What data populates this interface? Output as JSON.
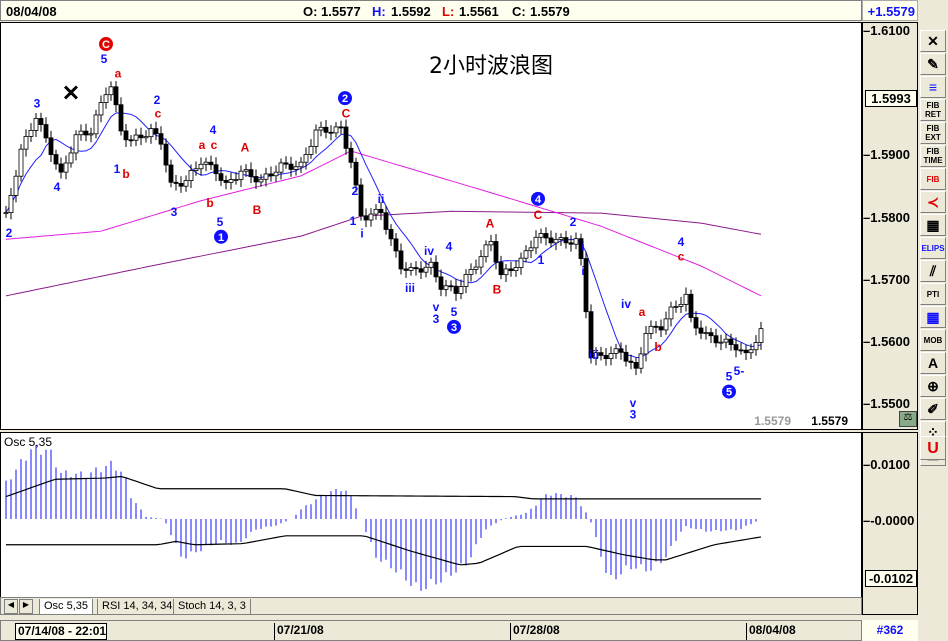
{
  "header": {
    "date": "08/04/08",
    "o_label": "O:",
    "o": "1.5577",
    "h_label": "H:",
    "h": "1.5592",
    "l_label": "L:",
    "l": "1.5561",
    "c_label": "C:",
    "c": "1.5579",
    "change": "+1.5579"
  },
  "colors": {
    "up_label": "#1010ff",
    "down_label": "#e00000",
    "ma_fast": "#2020ff",
    "ma_mid": "#e020e0",
    "ma_slow": "#8b1a8b",
    "histogram": "#1010ff"
  },
  "chart_data": [
    {
      "type": "candlestick",
      "title": "2小时波浪图",
      "ylim": [
        1.5425,
        1.614
      ],
      "y_ticks": [
        "1.6100",
        "1.5900",
        "1.5800",
        "1.5700",
        "1.5600",
        "1.5500"
      ],
      "highlight_price": "1.5993",
      "last_price_grey": "1.5579",
      "last_price": "1.5579",
      "close_keypoints": [
        [
          1,
          1.5802
        ],
        [
          4,
          1.5907
        ],
        [
          7,
          1.5963
        ],
        [
          10,
          1.5907
        ],
        [
          12,
          1.5867
        ],
        [
          15,
          1.5931
        ],
        [
          18,
          1.5939
        ],
        [
          21,
          1.6003
        ],
        [
          22,
          1.6012
        ],
        [
          24,
          1.5939
        ],
        [
          26,
          1.5923
        ],
        [
          30,
          1.5939
        ],
        [
          32,
          1.5923
        ],
        [
          34,
          1.5851
        ],
        [
          37,
          1.5859
        ],
        [
          40,
          1.5891
        ],
        [
          43,
          1.5875
        ],
        [
          45,
          1.5851
        ],
        [
          48,
          1.5875
        ],
        [
          52,
          1.5859
        ],
        [
          56,
          1.5883
        ],
        [
          60,
          1.5883
        ],
        [
          63,
          1.5939
        ],
        [
          68,
          1.5942
        ],
        [
          70,
          1.5891
        ],
        [
          72,
          1.5802
        ],
        [
          73,
          1.5802
        ],
        [
          76,
          1.581
        ],
        [
          78,
          1.5762
        ],
        [
          80,
          1.5722
        ],
        [
          82,
          1.5714
        ],
        [
          86,
          1.5722
        ],
        [
          88,
          1.569
        ],
        [
          91,
          1.5682
        ],
        [
          94,
          1.5714
        ],
        [
          98,
          1.5762
        ],
        [
          100,
          1.5706
        ],
        [
          104,
          1.573
        ],
        [
          107,
          1.577
        ],
        [
          112,
          1.5762
        ],
        [
          115,
          1.5762
        ],
        [
          116,
          1.573
        ],
        [
          118,
          1.5577
        ],
        [
          120,
          1.5577
        ],
        [
          124,
          1.5585
        ],
        [
          127,
          1.5553
        ],
        [
          129,
          1.5617
        ],
        [
          132,
          1.5625
        ],
        [
          134,
          1.565
        ],
        [
          137,
          1.5674
        ],
        [
          138,
          1.5634
        ],
        [
          141,
          1.561
        ],
        [
          144,
          1.5601
        ],
        [
          147,
          1.5593
        ],
        [
          149,
          1.5577
        ],
        [
          152,
          1.5617
        ]
      ],
      "ma_mid": [
        [
          1,
          1.5765
        ],
        [
          20,
          1.5778
        ],
        [
          40,
          1.5827
        ],
        [
          60,
          1.5867
        ],
        [
          70,
          1.5907
        ],
        [
          80,
          1.5883
        ],
        [
          100,
          1.5835
        ],
        [
          120,
          1.5786
        ],
        [
          140,
          1.5722
        ],
        [
          152,
          1.5674
        ]
      ],
      "ma_slow": [
        [
          1,
          1.5674
        ],
        [
          30,
          1.5722
        ],
        [
          60,
          1.577
        ],
        [
          72,
          1.5802
        ],
        [
          90,
          1.581
        ],
        [
          120,
          1.5807
        ],
        [
          140,
          1.5791
        ],
        [
          152,
          1.5773
        ]
      ],
      "annotations": [
        {
          "bar": 21,
          "price": 1.6079,
          "text": "C",
          "color": "red",
          "circle": true
        },
        {
          "bar": 20.6,
          "price": 1.6055,
          "text": "5",
          "color": "blue"
        },
        {
          "bar": 23.4,
          "price": 1.6032,
          "text": "a",
          "color": "red"
        },
        {
          "bar": 7.2,
          "price": 1.5983,
          "text": "3",
          "color": "blue"
        },
        {
          "bar": 11.2,
          "price": 1.5849,
          "text": "4",
          "color": "blue"
        },
        {
          "bar": 1.6,
          "price": 1.5775,
          "text": "2",
          "color": "blue"
        },
        {
          "bar": 14,
          "price": 1.5995,
          "text": "✕",
          "color": "black"
        },
        {
          "bar": 31.2,
          "price": 1.5989,
          "text": "2",
          "color": "blue"
        },
        {
          "bar": 31.4,
          "price": 1.5967,
          "text": "c",
          "color": "red"
        },
        {
          "bar": 23.2,
          "price": 1.5878,
          "text": "1",
          "color": "blue"
        },
        {
          "bar": 25,
          "price": 1.587,
          "text": "b",
          "color": "red"
        },
        {
          "bar": 42.4,
          "price": 1.5941,
          "text": "4",
          "color": "blue"
        },
        {
          "bar": 40.2,
          "price": 1.5917,
          "text": "a",
          "color": "red"
        },
        {
          "bar": 42.6,
          "price": 1.5917,
          "text": "c",
          "color": "red"
        },
        {
          "bar": 34.6,
          "price": 1.5809,
          "text": "3",
          "color": "blue"
        },
        {
          "bar": 41.8,
          "price": 1.5823,
          "text": "b",
          "color": "red"
        },
        {
          "bar": 43.8,
          "price": 1.5793,
          "text": "5",
          "color": "blue"
        },
        {
          "bar": 44,
          "price": 1.5769,
          "text": "1",
          "color": "blue",
          "circle": true
        },
        {
          "bar": 48.8,
          "price": 1.5913,
          "text": "A",
          "color": "red"
        },
        {
          "bar": 51.2,
          "price": 1.5812,
          "text": "B",
          "color": "red"
        },
        {
          "bar": 68.8,
          "price": 1.5992,
          "text": "2",
          "color": "blue",
          "circle": true
        },
        {
          "bar": 69,
          "price": 1.5967,
          "text": "C",
          "color": "red"
        },
        {
          "bar": 70.8,
          "price": 1.5843,
          "text": "2",
          "color": "blue"
        },
        {
          "bar": 70.4,
          "price": 1.5794,
          "text": "1",
          "color": "blue"
        },
        {
          "bar": 72.2,
          "price": 1.5774,
          "text": "i",
          "color": "blue"
        },
        {
          "bar": 76,
          "price": 1.583,
          "text": "ii",
          "color": "blue"
        },
        {
          "bar": 85.6,
          "price": 1.5746,
          "text": "iv",
          "color": "blue"
        },
        {
          "bar": 89.6,
          "price": 1.5753,
          "text": "4",
          "color": "blue"
        },
        {
          "bar": 81.8,
          "price": 1.5687,
          "text": "iii",
          "color": "blue"
        },
        {
          "bar": 87,
          "price": 1.5656,
          "text": "v",
          "color": "blue"
        },
        {
          "bar": 87,
          "price": 1.5637,
          "text": "3",
          "color": "blue"
        },
        {
          "bar": 90.6,
          "price": 1.5648,
          "text": "5",
          "color": "blue"
        },
        {
          "bar": 90.6,
          "price": 1.5624,
          "text": "3",
          "color": "blue",
          "circle": true
        },
        {
          "bar": 97.8,
          "price": 1.579,
          "text": "A",
          "color": "red"
        },
        {
          "bar": 99.2,
          "price": 1.5684,
          "text": "B",
          "color": "red"
        },
        {
          "bar": 107.4,
          "price": 1.583,
          "text": "4",
          "color": "blue",
          "circle": true
        },
        {
          "bar": 107.4,
          "price": 1.5804,
          "text": "C",
          "color": "red"
        },
        {
          "bar": 114.4,
          "price": 1.5793,
          "text": "2",
          "color": "blue"
        },
        {
          "bar": 108,
          "price": 1.5732,
          "text": "1",
          "color": "blue"
        },
        {
          "bar": 116.4,
          "price": 1.5753,
          "text": "i",
          "color": "blue"
        },
        {
          "bar": 116.4,
          "price": 1.5714,
          "text": "i",
          "color": "blue"
        },
        {
          "bar": 118.6,
          "price": 1.5579,
          "text": "iii",
          "color": "blue"
        },
        {
          "bar": 125,
          "price": 1.5661,
          "text": "iv",
          "color": "blue"
        },
        {
          "bar": 128.2,
          "price": 1.5648,
          "text": "a",
          "color": "red"
        },
        {
          "bar": 131.4,
          "price": 1.5592,
          "text": "b",
          "color": "red"
        },
        {
          "bar": 126.4,
          "price": 1.5502,
          "text": "v",
          "color": "blue"
        },
        {
          "bar": 126.4,
          "price": 1.5483,
          "text": "3",
          "color": "blue"
        },
        {
          "bar": 136,
          "price": 1.5761,
          "text": "4",
          "color": "blue"
        },
        {
          "bar": 136,
          "price": 1.5737,
          "text": "c",
          "color": "red"
        },
        {
          "bar": 145.6,
          "price": 1.5544,
          "text": "5",
          "color": "blue"
        },
        {
          "bar": 147.6,
          "price": 1.5553,
          "text": "5-",
          "color": "blue"
        },
        {
          "bar": 145.6,
          "price": 1.552,
          "text": "5",
          "color": "blue",
          "circle": true
        }
      ]
    },
    {
      "type": "bar",
      "title": "Osc 5,35",
      "ylim": [
        -0.015,
        0.017
      ],
      "y_ticks": [
        "0.0100",
        "-0.0000"
      ],
      "low_label": "-0.0102",
      "histogram_keypoints": [
        [
          1,
          0.0064
        ],
        [
          6,
          0.0124
        ],
        [
          9.6,
          0.0123
        ],
        [
          12,
          0.0082
        ],
        [
          17,
          0.0079
        ],
        [
          22.4,
          0.0099
        ],
        [
          24.8,
          0.0076
        ],
        [
          26,
          0.004
        ],
        [
          29,
          0.0004
        ],
        [
          32.6,
          0
        ],
        [
          36.2,
          -0.007
        ],
        [
          38.6,
          -0.006
        ],
        [
          43.6,
          -0.004
        ],
        [
          47.2,
          -0.0046
        ],
        [
          50.8,
          -0.0019
        ],
        [
          55.6,
          -0.001
        ],
        [
          58,
          0
        ],
        [
          60.4,
          0.002
        ],
        [
          65.2,
          0.0046
        ],
        [
          68.4,
          0.0055
        ],
        [
          70.2,
          0.0037
        ],
        [
          72,
          0
        ],
        [
          75,
          -0.0067
        ],
        [
          79.8,
          -0.0096
        ],
        [
          83.4,
          -0.0126
        ],
        [
          88.2,
          -0.0108
        ],
        [
          93.2,
          -0.0079
        ],
        [
          96.8,
          -0.0019
        ],
        [
          100.4,
          0
        ],
        [
          105.2,
          0.0011
        ],
        [
          109.4,
          0.0046
        ],
        [
          114.8,
          0.004
        ],
        [
          116.6,
          0.0017
        ],
        [
          117.8,
          0
        ],
        [
          121.6,
          -0.0111
        ],
        [
          125.8,
          -0.0085
        ],
        [
          130,
          -0.009
        ],
        [
          133,
          -0.0067
        ],
        [
          136.6,
          -0.0013
        ],
        [
          141.4,
          -0.0022
        ],
        [
          147.6,
          -0.0019
        ],
        [
          152,
          0
        ]
      ],
      "upper_line": [
        [
          1,
          0.004
        ],
        [
          10.8,
          0.0071
        ],
        [
          20.6,
          0.0073
        ],
        [
          24.2,
          0.0076
        ],
        [
          31.4,
          0.0054
        ],
        [
          56.8,
          0.0054
        ],
        [
          62.8,
          0.0042
        ],
        [
          102.8,
          0.004
        ],
        [
          106.4,
          0.0036
        ],
        [
          152,
          0.0036
        ]
      ],
      "lower_line": [
        [
          1,
          -0.0046
        ],
        [
          31.4,
          -0.0046
        ],
        [
          35,
          -0.004
        ],
        [
          38.6,
          -0.0046
        ],
        [
          48.4,
          -0.0044
        ],
        [
          56.8,
          -0.003
        ],
        [
          72.6,
          -0.003
        ],
        [
          82.2,
          -0.0058
        ],
        [
          91.8,
          -0.0082
        ],
        [
          95.6,
          -0.0079
        ],
        [
          103.4,
          -0.0049
        ],
        [
          117.2,
          -0.0049
        ],
        [
          124.6,
          -0.0064
        ],
        [
          130.6,
          -0.0073
        ],
        [
          133,
          -0.0073
        ],
        [
          142.6,
          -0.0046
        ],
        [
          152,
          -0.0032
        ]
      ]
    }
  ],
  "tabs": [
    "Osc 5,35",
    "RSI 14, 34, 34",
    "Stoch 14, 3, 3"
  ],
  "dates": [
    "07/14/08 - 22:01",
    "07/21/08",
    "07/28/08",
    "08/04/08"
  ],
  "bar_count": "#362",
  "toolbar": [
    {
      "icon": "close-icon",
      "label": "✕"
    },
    {
      "icon": "pencil-icon",
      "label": "✎"
    },
    {
      "icon": "trendlines-icon",
      "label": "≡"
    },
    {
      "icon": "fib-retracement-icon",
      "label": "FIB RET"
    },
    {
      "icon": "fib-extension-icon",
      "label": "FIB EXT"
    },
    {
      "icon": "fib-time-icon",
      "label": "FIB TIME"
    },
    {
      "icon": "fib-arc-icon",
      "label": "FIB"
    },
    {
      "icon": "fan-icon",
      "label": "≺"
    },
    {
      "icon": "grid-icon",
      "label": "▦"
    },
    {
      "icon": "ellipse-icon",
      "label": "ELIPS"
    },
    {
      "icon": "channel-icon",
      "label": "⫽"
    },
    {
      "icon": "pti-icon",
      "label": "PTI"
    },
    {
      "icon": "table-icon",
      "label": "▦"
    },
    {
      "icon": "mob-icon",
      "label": "MOB"
    },
    {
      "icon": "text-icon",
      "label": "A"
    },
    {
      "icon": "zoom-icon",
      "label": "⊕"
    },
    {
      "icon": "eraser-icon",
      "label": "✐"
    },
    {
      "icon": "pattern-icon",
      "label": "⁘"
    },
    {
      "icon": "notes-icon",
      "label": "☰"
    }
  ],
  "magnet_label": "U"
}
